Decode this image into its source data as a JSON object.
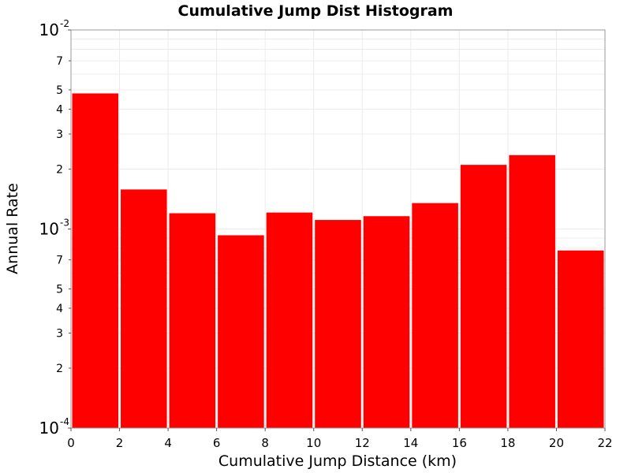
{
  "chart_data": {
    "type": "bar",
    "title": "Cumulative Jump Dist Histogram",
    "xlabel": "Cumulative Jump Distance (km)",
    "ylabel": "Annual Rate",
    "bin_edges": [
      0,
      2,
      4,
      6,
      8,
      10,
      12,
      14,
      16,
      18,
      20,
      22
    ],
    "values": [
      0.0048,
      0.00158,
      0.0012,
      0.00093,
      0.00121,
      0.00111,
      0.00116,
      0.00135,
      0.0021,
      0.00235,
      0.00078
    ],
    "xlim": [
      0,
      22
    ],
    "ylim": [
      0.0001,
      0.01
    ],
    "yscale": "log",
    "x_ticks": [
      0,
      2,
      4,
      6,
      8,
      10,
      12,
      14,
      16,
      18,
      20,
      22
    ],
    "y_major_ticks": [
      {
        "value": 0.01,
        "base": "10",
        "exp": "-2"
      },
      {
        "value": 0.001,
        "base": "10",
        "exp": "-3"
      },
      {
        "value": 0.0001,
        "base": "10",
        "exp": "-4"
      }
    ],
    "y_minor_tick_labels": [
      2,
      3,
      4,
      5,
      7
    ],
    "grid": true,
    "bar_color": "#ff0000"
  }
}
